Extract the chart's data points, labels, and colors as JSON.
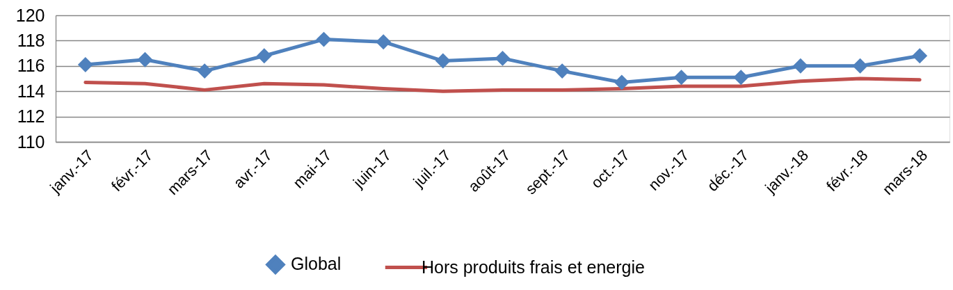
{
  "chart_data": {
    "type": "line",
    "categories": [
      "janv.-17",
      "févr.-17",
      "mars-17",
      "avr.-17",
      "mai-17",
      "juin-17",
      "juil.-17",
      "août-17",
      "sept.-17",
      "oct.-17",
      "nov.-17",
      "déc.-17",
      "janv.-18",
      "févr.-18",
      "mars-18"
    ],
    "series": [
      {
        "name": "Global",
        "color": "#4f81bd",
        "marker": "diamond",
        "values": [
          116.1,
          116.5,
          115.6,
          116.8,
          118.1,
          117.9,
          116.4,
          116.6,
          115.6,
          114.7,
          115.1,
          115.1,
          116.0,
          116.0,
          116.8
        ]
      },
      {
        "name": "Hors produits frais et energie",
        "color": "#c0504d",
        "marker": "none",
        "values": [
          114.7,
          114.6,
          114.1,
          114.6,
          114.5,
          114.2,
          114.0,
          114.1,
          114.1,
          114.2,
          114.4,
          114.4,
          114.8,
          115.0,
          114.9
        ]
      }
    ],
    "ylim": [
      110,
      120
    ],
    "yticks": [
      110,
      112,
      114,
      116,
      118,
      120
    ],
    "grid": "y",
    "legend": "bottom",
    "line_style": "solid"
  }
}
